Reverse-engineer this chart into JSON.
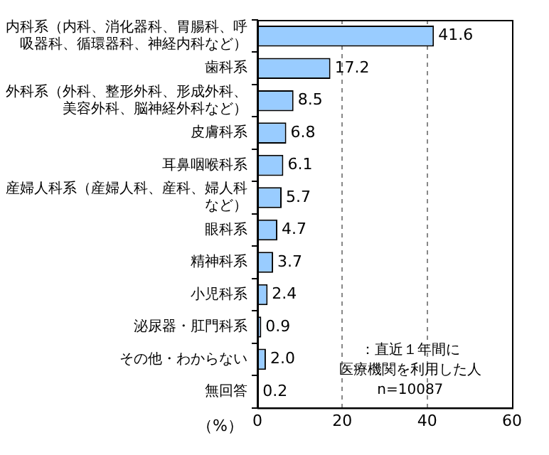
{
  "chart_data": {
    "type": "bar",
    "orientation": "horizontal",
    "xlabel": "（%）",
    "categories": [
      "内科系（内科、消化器科、胃腸科、呼吸器科、循環器科、神経内科など）",
      "歯科系",
      "外科系（外科、整形外科、形成外科、美容外科、脳神経外科など）",
      "皮膚科系",
      "耳鼻咽喉科系",
      "産婦人科系（産婦人科、産科、婦人科など）",
      "眼科系",
      "精神科系",
      "小児科系",
      "泌尿器・肛門科系",
      "その他・わからない",
      "無回答"
    ],
    "values": [
      41.6,
      17.2,
      8.5,
      6.8,
      6.1,
      5.7,
      4.7,
      3.7,
      2.4,
      0.9,
      2.0,
      0.2
    ],
    "color": "#99ccff",
    "xlim": [
      0,
      60
    ],
    "xticks": [
      0,
      20,
      40,
      60
    ],
    "grid": "x",
    "value_labels": [
      "41.6",
      "17.2",
      "8.5",
      "6.8",
      "6.1",
      "5.7",
      "4.7",
      "3.7",
      "2.4",
      "0.9",
      "2.0",
      "0.2"
    ],
    "legend": false,
    "annotations": [
      "：直近１年間に",
      "医療機関を利用した人",
      "n=10087"
    ]
  }
}
